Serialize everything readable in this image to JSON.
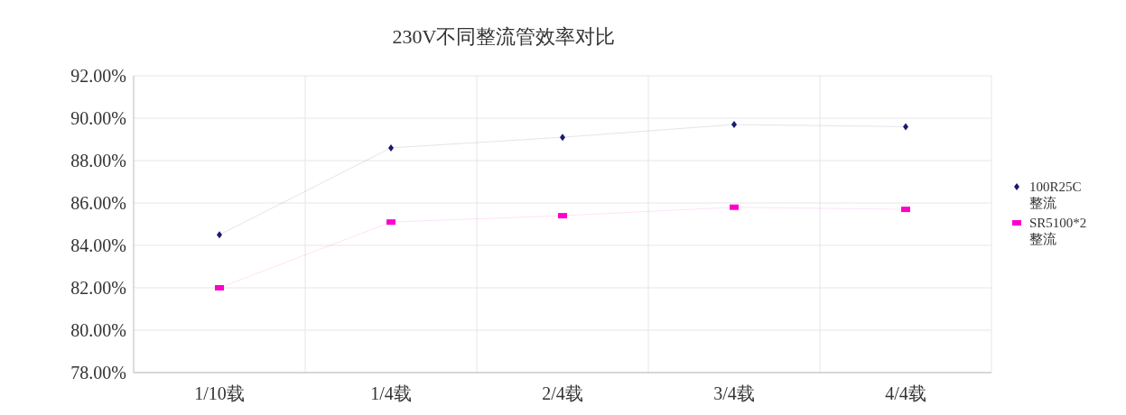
{
  "chart_data": {
    "type": "line",
    "title": "230V不同整流管效率对比",
    "categories": [
      "1/10载",
      "1/4载",
      "2/4载",
      "3/4载",
      "4/4载"
    ],
    "series": [
      {
        "name": "100R25C整流",
        "color": "#1a1a6e",
        "marker": "diamond",
        "values": [
          84.5,
          88.6,
          89.1,
          89.7,
          89.6
        ]
      },
      {
        "name": "SR5100*2整流",
        "color": "#ff00cc",
        "marker": "square",
        "values": [
          82.0,
          85.1,
          85.4,
          85.8,
          85.7
        ]
      }
    ],
    "ylim": [
      78,
      92
    ],
    "yticks": [
      {
        "value": 78,
        "label": "78.00%"
      },
      {
        "value": 80,
        "label": "80.00%"
      },
      {
        "value": 82,
        "label": "82.00%"
      },
      {
        "value": 84,
        "label": "84.00%"
      },
      {
        "value": 86,
        "label": "86.00%"
      },
      {
        "value": 88,
        "label": "88.00%"
      },
      {
        "value": 90,
        "label": "90.00%"
      },
      {
        "value": 92,
        "label": "92.00%"
      }
    ],
    "grid": true,
    "legend": "right",
    "line_style": "solid"
  }
}
